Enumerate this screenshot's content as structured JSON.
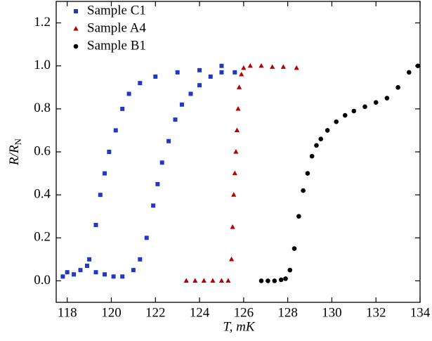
{
  "chart_data": {
    "type": "scatter",
    "x_label": "T, mK",
    "y_label": "R/R",
    "y_label_subscript": "N",
    "xlim": [
      117.5,
      134
    ],
    "xticks": [
      118,
      120,
      122,
      124,
      126,
      128,
      130,
      132,
      134
    ],
    "ylim": [
      -0.1,
      1.3
    ],
    "yticks": [
      {
        "value": 0,
        "label": "0.0"
      },
      0.2,
      0.4,
      0.6,
      0.8,
      {
        "value": 1,
        "label": "1.0"
      },
      1.2
    ],
    "legend": "upper left",
    "series": [
      {
        "name": "Sample C1",
        "color": "#2038c4",
        "marker": "square",
        "x": [
          117.8,
          118.0,
          118.3,
          118.6,
          118.9,
          119.3,
          119.7,
          120.1,
          119.0,
          119.3,
          119.5,
          119.7,
          119.9,
          120.2,
          120.5,
          120.8,
          121.3,
          122.0,
          123.0,
          124.0,
          125.0,
          120.5,
          121.0,
          121.3,
          121.6,
          121.9,
          122.1,
          122.3,
          122.6,
          122.9,
          123.2,
          123.6,
          124.0,
          124.5,
          125.0,
          125.6
        ],
        "values": [
          0.02,
          0.04,
          0.03,
          0.05,
          0.07,
          0.04,
          0.03,
          0.02,
          0.1,
          0.26,
          0.4,
          0.5,
          0.6,
          0.7,
          0.8,
          0.87,
          0.92,
          0.95,
          0.97,
          0.98,
          1.0,
          0.02,
          0.05,
          0.1,
          0.2,
          0.35,
          0.45,
          0.55,
          0.65,
          0.75,
          0.82,
          0.87,
          0.91,
          0.95,
          0.97,
          0.97
        ]
      },
      {
        "name": "Sample A4",
        "color": "#b80000",
        "marker": "triangle",
        "x": [
          123.4,
          123.8,
          124.2,
          124.6,
          125.0,
          125.3,
          125.45,
          125.5,
          125.55,
          125.6,
          125.65,
          125.7,
          125.75,
          125.8,
          125.9,
          126.0,
          126.3,
          126.8,
          127.3,
          127.8,
          128.4
        ],
        "values": [
          0,
          0,
          0,
          0,
          0,
          0,
          0.1,
          0.25,
          0.4,
          0.5,
          0.6,
          0.7,
          0.8,
          0.9,
          0.96,
          0.99,
          1.0,
          1.0,
          0.995,
          0.995,
          0.99
        ]
      },
      {
        "name": "Sample B1",
        "color": "#000000",
        "marker": "circle",
        "x": [
          126.8,
          127.1,
          127.4,
          127.7,
          127.9,
          128.1,
          128.3,
          128.5,
          128.7,
          128.9,
          129.1,
          129.3,
          129.5,
          129.8,
          130.2,
          130.6,
          131.0,
          131.5,
          132.0,
          132.5,
          133.0,
          133.5,
          133.9
        ],
        "values": [
          0,
          0,
          0,
          0.005,
          0.01,
          0.05,
          0.15,
          0.3,
          0.42,
          0.5,
          0.58,
          0.63,
          0.66,
          0.7,
          0.74,
          0.77,
          0.79,
          0.81,
          0.83,
          0.85,
          0.9,
          0.97,
          1.0
        ]
      }
    ]
  }
}
